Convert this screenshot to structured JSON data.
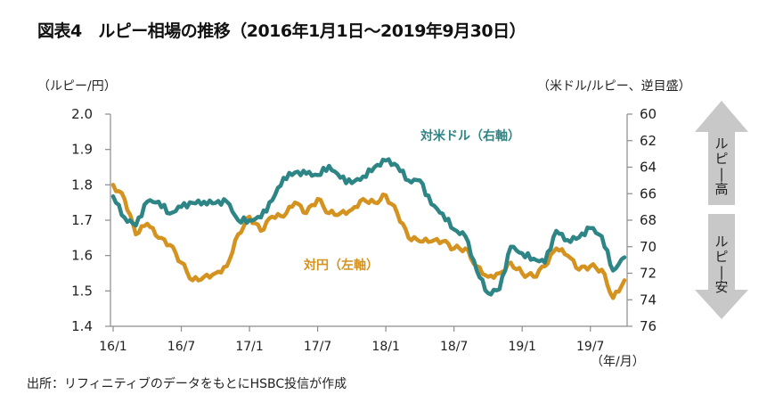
{
  "title": "図表4　ルピー相場の推移（2016年1月1日～2019年9月30日）",
  "source": "出所：リフィニティブのデータをもとにHSBC投信が作成",
  "chart_data": {
    "type": "line",
    "title": "図表4　ルピー相場の推移（2016年1月1日～2019年9月30日）",
    "xlabel": "（年/月）",
    "ylabel_left": "（ルピー/円）",
    "ylabel_right": "（米ドル/ルピー、逆目盛）",
    "x_start": "2016-01-01",
    "x_end": "2019-09-30",
    "x_ticks": [
      "16/1",
      "16/7",
      "17/1",
      "17/7",
      "18/1",
      "18/7",
      "19/1",
      "19/7"
    ],
    "x_tick_months": [
      0,
      6,
      12,
      18,
      24,
      30,
      36,
      42
    ],
    "x_range_months": [
      0,
      45
    ],
    "ylim_left": [
      1.4,
      2.0
    ],
    "y_ticks_left": [
      "1.4",
      "1.5",
      "1.6",
      "1.7",
      "1.8",
      "1.9",
      "2.0"
    ],
    "ylim_right": [
      60,
      76
    ],
    "right_axis_inverted": true,
    "y_ticks_right": [
      "60",
      "62",
      "64",
      "66",
      "68",
      "70",
      "72",
      "74",
      "76"
    ],
    "grid": false,
    "series": [
      {
        "name": "対円（左軸）",
        "axis": "left",
        "color": "#d4921f",
        "label_position": "middle-left",
        "x_months": [
          0,
          1,
          2,
          3,
          4,
          5,
          6,
          7,
          8,
          9,
          10,
          11,
          12,
          13,
          14,
          15,
          16,
          17,
          18,
          19,
          20,
          21,
          22,
          23,
          24,
          25,
          26,
          27,
          28,
          29,
          30,
          31,
          32,
          33,
          34,
          35,
          36,
          37,
          38,
          39,
          40,
          41,
          42,
          43,
          44,
          45
        ],
        "values": [
          1.8,
          1.76,
          1.66,
          1.69,
          1.65,
          1.63,
          1.58,
          1.53,
          1.54,
          1.55,
          1.57,
          1.66,
          1.71,
          1.67,
          1.71,
          1.71,
          1.75,
          1.72,
          1.76,
          1.72,
          1.72,
          1.73,
          1.76,
          1.75,
          1.77,
          1.72,
          1.65,
          1.64,
          1.64,
          1.64,
          1.62,
          1.62,
          1.57,
          1.54,
          1.55,
          1.58,
          1.55,
          1.54,
          1.57,
          1.62,
          1.6,
          1.56,
          1.57,
          1.56,
          1.48,
          1.53
        ]
      },
      {
        "name": "対米ドル（右軸）",
        "axis": "right",
        "color": "#2e8585",
        "label_position": "top-right",
        "x_months": [
          0,
          1,
          2,
          3,
          4,
          5,
          6,
          7,
          8,
          9,
          10,
          11,
          12,
          13,
          14,
          15,
          16,
          17,
          18,
          19,
          20,
          21,
          22,
          23,
          24,
          25,
          26,
          27,
          28,
          29,
          30,
          31,
          32,
          33,
          34,
          35,
          36,
          37,
          38,
          39,
          40,
          41,
          42,
          43,
          44,
          45
        ],
        "values": [
          66.2,
          67.8,
          68.4,
          66.6,
          66.6,
          67.5,
          67.0,
          66.7,
          66.6,
          66.7,
          66.6,
          68.0,
          68.0,
          67.8,
          66.5,
          64.8,
          64.4,
          64.5,
          64.6,
          63.9,
          64.8,
          65.2,
          64.7,
          64.0,
          63.5,
          63.9,
          65.0,
          65.0,
          66.8,
          67.5,
          68.7,
          69.2,
          71.8,
          73.5,
          73.2,
          70.0,
          70.5,
          70.9,
          71.2,
          68.8,
          69.5,
          69.3,
          68.6,
          69.2,
          71.8,
          70.8
        ]
      }
    ],
    "annotations": {
      "arrow_up": "ルピー高",
      "arrow_down": "ルピー安"
    }
  }
}
